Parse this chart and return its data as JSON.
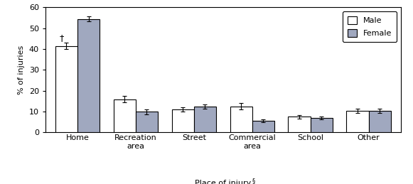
{
  "categories": [
    "Home",
    "Recreation\narea",
    "Street",
    "Commercial\narea",
    "School",
    "Other"
  ],
  "male_values": [
    41.5,
    16.0,
    11.0,
    12.5,
    7.5,
    10.5
  ],
  "female_values": [
    54.5,
    10.0,
    12.5,
    5.5,
    7.0,
    10.5
  ],
  "male_errors": [
    1.5,
    1.5,
    1.0,
    1.5,
    0.8,
    1.0
  ],
  "female_errors": [
    1.2,
    1.2,
    1.0,
    0.7,
    0.8,
    1.0
  ],
  "male_color": "#ffffff",
  "female_color": "#a0a8bf",
  "bar_edgecolor": "#000000",
  "error_color": "#000000",
  "ylabel": "% of injuries",
  "xlabel": "Place of injury",
  "xlabel_superscript": "§",
  "ylim": [
    0,
    60
  ],
  "yticks": [
    0,
    10,
    20,
    30,
    40,
    50,
    60
  ],
  "legend_labels": [
    "Male",
    "Female"
  ],
  "bar_width": 0.38,
  "dagger_label": "†",
  "background_color": "#ffffff",
  "axis_fontsize": 8,
  "tick_fontsize": 8,
  "legend_fontsize": 8
}
